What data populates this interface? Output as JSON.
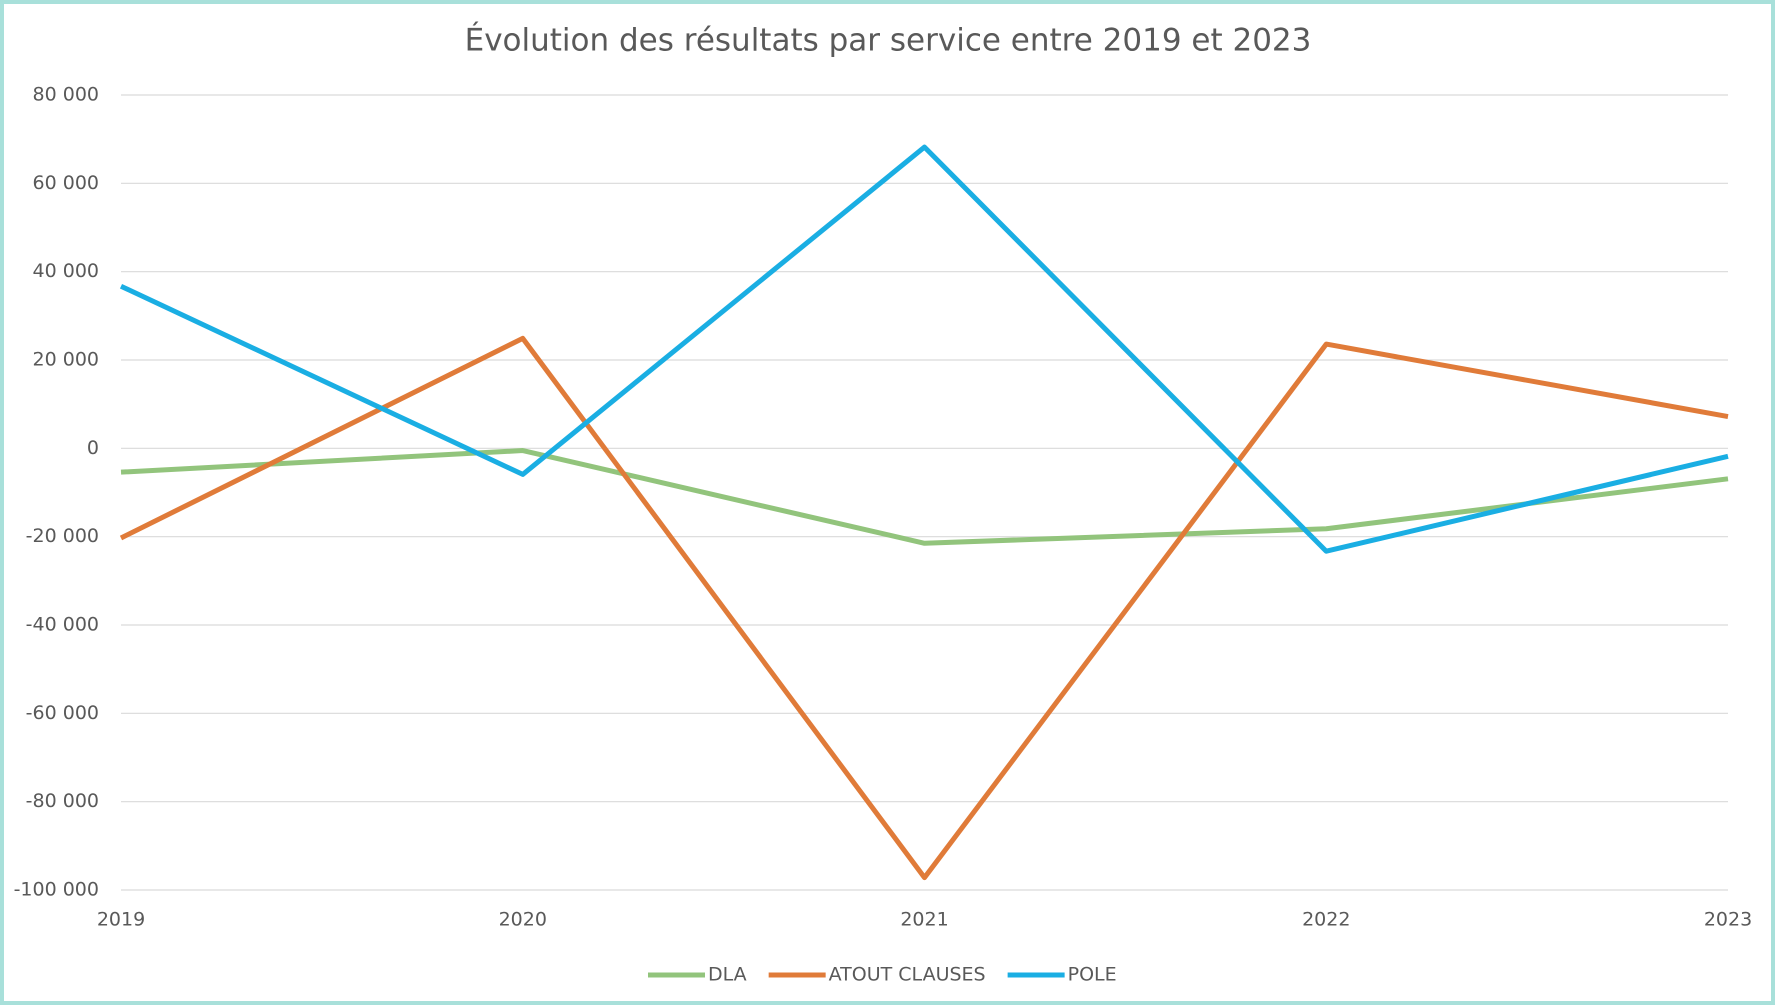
{
  "chart_data": {
    "type": "line",
    "title": "Évolution des résultats par service entre 2019 et 2023",
    "categories": [
      "2019",
      "2020",
      "2021",
      "2022",
      "2023"
    ],
    "series": [
      {
        "name": "DLA",
        "color": "#92c47c",
        "values": [
          -5400,
          -500,
          -21500,
          -18200,
          -6900
        ]
      },
      {
        "name": "ATOUT CLAUSES",
        "color": "#e07b39",
        "values": [
          -20300,
          24900,
          -97200,
          23600,
          7200
        ]
      },
      {
        "name": "POLE",
        "color": "#1aaee3",
        "values": [
          36700,
          -5900,
          68200,
          -23300,
          -1800
        ]
      }
    ],
    "ylim": [
      -100000,
      80000
    ],
    "yticks": [
      {
        "value": -100000,
        "label": "-100 000"
      },
      {
        "value": -80000,
        "label": "-80 000"
      },
      {
        "value": -60000,
        "label": "-60 000"
      },
      {
        "value": -40000,
        "label": "-40 000"
      },
      {
        "value": -20000,
        "label": "-20 000"
      },
      0,
      {
        "value": 20000,
        "label": "20 000"
      },
      {
        "value": 40000,
        "label": "40 000"
      },
      {
        "value": 60000,
        "label": "60 000"
      },
      {
        "value": 80000,
        "label": "80 000"
      }
    ],
    "grid": true,
    "legend": "bottom"
  }
}
